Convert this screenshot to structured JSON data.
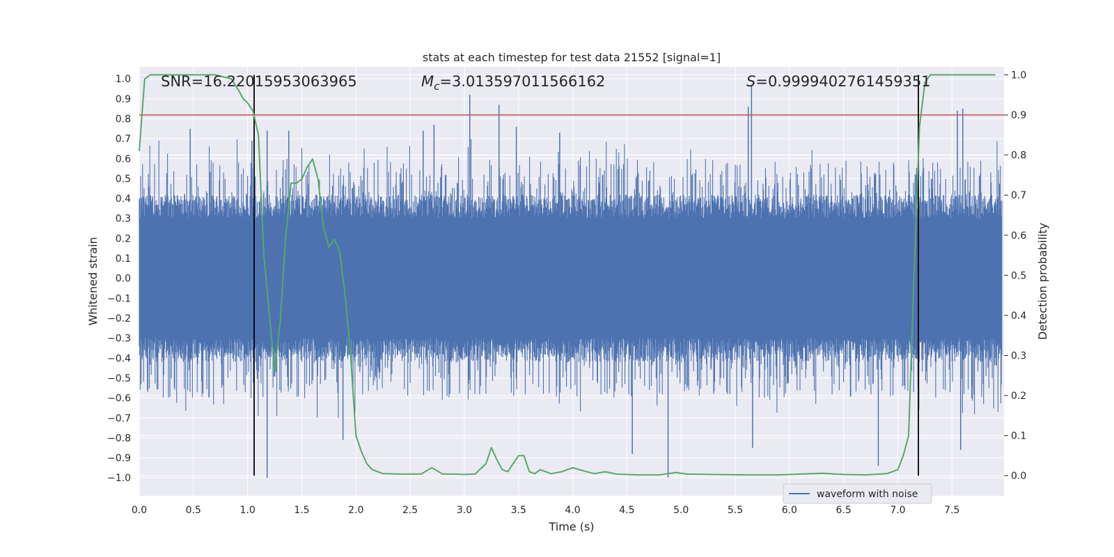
{
  "chart_data": {
    "type": "line",
    "title": "stats at each timestep for test data 21552 [signal=1]",
    "xlabel": "Time (s)",
    "ylabel_left": "Whitened strain",
    "ylabel_right": "Detection probability",
    "xlim": [
      0.0,
      7.98
    ],
    "ylim_left": [
      -1.09,
      1.06
    ],
    "ylim_right": [
      -0.05,
      1.02
    ],
    "xticks": [
      "0.0",
      "0.5",
      "1.0",
      "1.5",
      "2.0",
      "2.5",
      "3.0",
      "3.5",
      "4.0",
      "4.5",
      "5.0",
      "5.5",
      "6.0",
      "6.5",
      "7.0",
      "7.5"
    ],
    "yticks_left": [
      "1.0",
      "0.9",
      "0.8",
      "0.7",
      "0.6",
      "0.5",
      "0.4",
      "0.3",
      "0.2",
      "0.1",
      "0.0",
      "−0.1",
      "−0.2",
      "−0.3",
      "−0.4",
      "−0.5",
      "−0.6",
      "−0.7",
      "−0.8",
      "−0.9",
      "−1.0"
    ],
    "yticks_right": [
      "1.0",
      "0.9",
      "0.8",
      "0.7",
      "0.6",
      "0.5",
      "0.4",
      "0.3",
      "0.2",
      "0.1",
      "0.0"
    ],
    "grid": true,
    "legend_placement": "lower-right",
    "annotations": {
      "snr": "SNR=16.22015953063965",
      "mc_prefix": "M",
      "mc_sub": "c",
      "mc_value": "=3.013597011566162",
      "s_prefix": "S",
      "s_value": "=0.9999402761459351"
    },
    "series": [
      {
        "name": "waveform with noise",
        "color": "#4c72b0",
        "kind": "noisy-waveform",
        "typical_band": [
          -0.38,
          0.38
        ],
        "spikes": [
          {
            "x": 0.47,
            "y": 0.75
          },
          {
            "x": 1.04,
            "y": 0.69
          },
          {
            "x": 1.18,
            "y": 0.74
          },
          {
            "x": 1.18,
            "y": -1.0
          },
          {
            "x": 1.38,
            "y": 0.74
          },
          {
            "x": 1.88,
            "y": -0.81
          },
          {
            "x": 2.62,
            "y": 0.74
          },
          {
            "x": 2.72,
            "y": 0.77
          },
          {
            "x": 3.05,
            "y": 0.92
          },
          {
            "x": 3.32,
            "y": 0.87
          },
          {
            "x": 3.48,
            "y": 0.76
          },
          {
            "x": 3.88,
            "y": 0.73
          },
          {
            "x": 4.55,
            "y": -0.88
          },
          {
            "x": 4.88,
            "y": -1.0
          },
          {
            "x": 5.62,
            "y": 0.86
          },
          {
            "x": 5.65,
            "y": 0.97
          },
          {
            "x": 5.66,
            "y": -0.85
          },
          {
            "x": 6.82,
            "y": -0.94
          },
          {
            "x": 7.55,
            "y": 0.84
          },
          {
            "x": 7.6,
            "y": 0.85
          },
          {
            "x": 7.58,
            "y": -0.86
          }
        ]
      },
      {
        "name": "",
        "color": "#55a868",
        "axis": "right",
        "x": [
          0.0,
          0.05,
          0.1,
          0.2,
          0.3,
          0.5,
          0.7,
          0.85,
          0.92,
          0.96,
          1.0,
          1.05,
          1.1,
          1.15,
          1.25,
          1.3,
          1.35,
          1.4,
          1.45,
          1.5,
          1.55,
          1.6,
          1.65,
          1.7,
          1.75,
          1.8,
          1.85,
          1.9,
          1.95,
          2.0,
          2.05,
          2.1,
          2.15,
          2.25,
          2.4,
          2.6,
          2.7,
          2.8,
          2.9,
          3.0,
          3.1,
          3.2,
          3.25,
          3.3,
          3.35,
          3.4,
          3.5,
          3.55,
          3.6,
          3.65,
          3.7,
          3.8,
          3.9,
          3.95,
          4.0,
          4.1,
          4.2,
          4.3,
          4.4,
          4.5,
          4.6,
          4.8,
          4.95,
          5.05,
          5.3,
          5.6,
          5.9,
          6.1,
          6.3,
          6.5,
          6.7,
          6.9,
          7.0,
          7.05,
          7.1,
          7.15,
          7.2,
          7.25,
          7.3,
          7.4,
          7.5,
          7.7,
          7.9
        ],
        "y": [
          0.81,
          0.99,
          1.0,
          1.0,
          1.0,
          1.0,
          1.0,
          0.99,
          0.96,
          0.94,
          0.93,
          0.91,
          0.85,
          0.55,
          0.26,
          0.38,
          0.59,
          0.73,
          0.73,
          0.74,
          0.77,
          0.79,
          0.74,
          0.62,
          0.57,
          0.59,
          0.56,
          0.45,
          0.3,
          0.1,
          0.06,
          0.03,
          0.015,
          0.005,
          0.004,
          0.004,
          0.02,
          0.004,
          0.004,
          0.003,
          0.004,
          0.03,
          0.07,
          0.04,
          0.015,
          0.01,
          0.05,
          0.05,
          0.01,
          0.005,
          0.015,
          0.005,
          0.01,
          0.015,
          0.02,
          0.012,
          0.005,
          0.01,
          0.004,
          0.003,
          0.002,
          0.002,
          0.008,
          0.004,
          0.003,
          0.002,
          0.002,
          0.004,
          0.006,
          0.003,
          0.002,
          0.005,
          0.015,
          0.05,
          0.1,
          0.5,
          0.87,
          0.98,
          1.0,
          1.0,
          1.0,
          1.0,
          1.0
        ]
      }
    ],
    "threshold_line": {
      "y_right": 0.9,
      "color": "#c44e52"
    },
    "vertical_markers": {
      "x": [
        1.06,
        7.19
      ],
      "color": "#000000"
    }
  }
}
